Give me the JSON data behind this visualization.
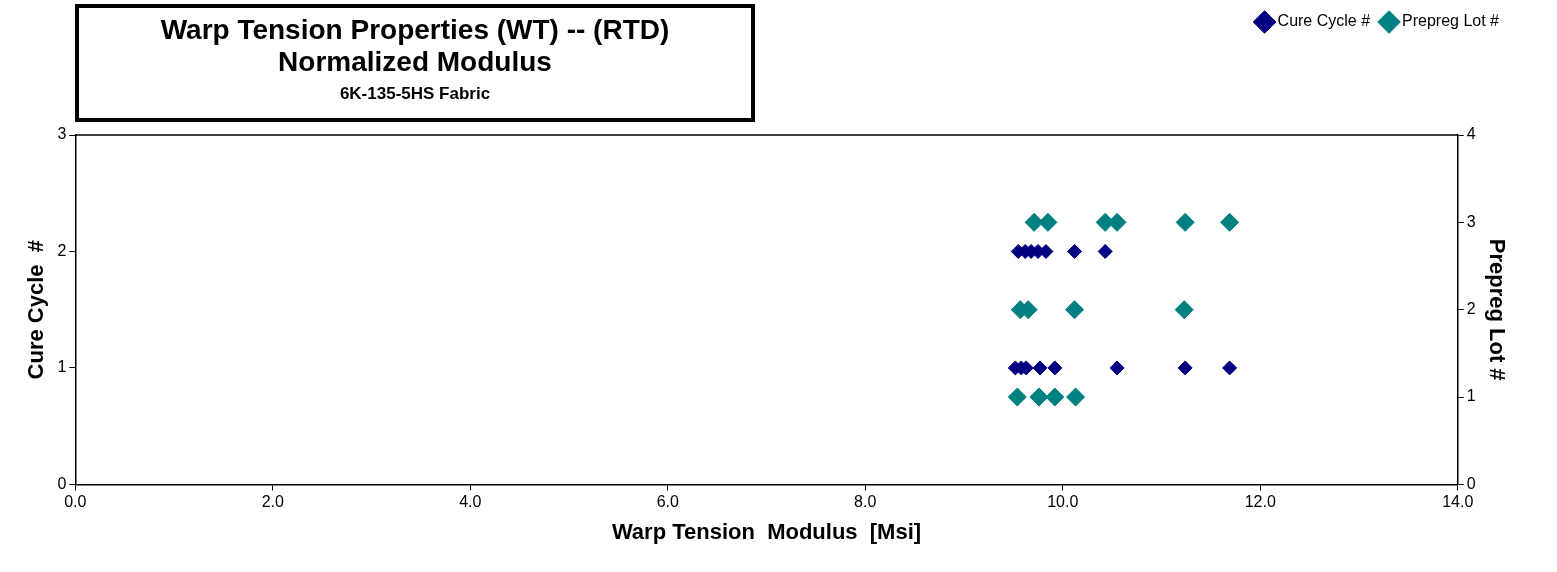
{
  "chart_data": {
    "type": "scatter",
    "title": "Warp Tension Properties (WT) --  (RTD)",
    "subtitle": "Normalized Modulus",
    "annotations": [
      "6K-135-5HS  Fabric"
    ],
    "xlabel": "Warp Tension  Modulus  [Msi]",
    "ylabel": "Cure Cycle  #",
    "y2label": "Prepreg Lot #",
    "xlim": [
      0,
      14
    ],
    "xticks": [
      {
        "value": 0,
        "label": "0.0"
      },
      {
        "value": 2,
        "label": "2.0"
      },
      {
        "value": 4,
        "label": "4.0"
      },
      {
        "value": 6,
        "label": "6.0"
      },
      {
        "value": 8,
        "label": "8.0"
      },
      {
        "value": 10,
        "label": "10.0"
      },
      {
        "value": 12,
        "label": "12.0"
      },
      {
        "value": 14,
        "label": "14.0"
      }
    ],
    "ylim": [
      0,
      3
    ],
    "yticks": [
      0,
      1,
      2,
      3
    ],
    "y2lim": [
      0,
      4
    ],
    "y2ticks": [
      0,
      1,
      2,
      3,
      4
    ],
    "grid": false,
    "legend": "top right",
    "marker": "diamond",
    "series": [
      {
        "name": "Cure Cycle #",
        "color": "#000080",
        "x": [
          9.55,
          9.62,
          9.68,
          9.75,
          9.83,
          10.12,
          10.43,
          9.52,
          9.58,
          9.63,
          9.77,
          9.92,
          10.55,
          11.24,
          11.69
        ],
        "values": [
          2,
          2,
          2,
          2,
          2,
          2,
          2,
          1,
          1,
          1,
          1,
          1,
          1,
          1,
          1
        ]
      },
      {
        "name": "Prepreg Lot #",
        "color": "#008080",
        "axis": "y2",
        "x": [
          9.71,
          9.85,
          10.43,
          10.55,
          11.24,
          11.69,
          9.57,
          9.65,
          10.12,
          11.23,
          9.54,
          9.76,
          9.92,
          10.13
        ],
        "values": [
          3,
          3,
          3,
          3,
          3,
          3,
          2,
          2,
          2,
          2,
          1,
          1,
          1,
          1
        ]
      }
    ]
  }
}
